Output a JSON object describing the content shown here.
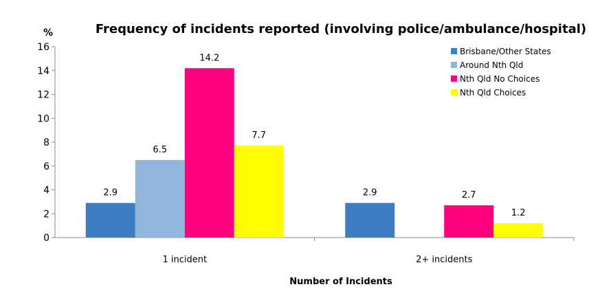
{
  "chart_data": {
    "type": "bar",
    "title": "Frequency of incidents reported (involving police/ambulance/hospital)",
    "ylabel": "%",
    "xlabel": "Number of Incidents",
    "categories": [
      "1 incident",
      "2+ incidents"
    ],
    "ylim": [
      0,
      16
    ],
    "yticks": [
      0,
      2,
      4,
      6,
      8,
      10,
      12,
      14,
      16
    ],
    "grid": false,
    "legend_position": "top-right",
    "series": [
      {
        "name": "Brisbane/Other States",
        "color": "#3E7DC1",
        "values": [
          2.9,
          2.9
        ],
        "labels": [
          "2.9",
          "2.9"
        ]
      },
      {
        "name": "Around Nth Qld",
        "color": "#92B5DB",
        "values": [
          6.5,
          0
        ],
        "labels": [
          "6.5",
          ""
        ]
      },
      {
        "name": "Nth Qld No Choices",
        "color": "#FF007F",
        "values": [
          14.2,
          2.7
        ],
        "labels": [
          "14.2",
          "2.7"
        ]
      },
      {
        "name": "Nth Qld  Choices",
        "color": "#FFFF00",
        "values": [
          7.7,
          1.2
        ],
        "labels": [
          "7.7",
          "1.2"
        ]
      }
    ]
  }
}
